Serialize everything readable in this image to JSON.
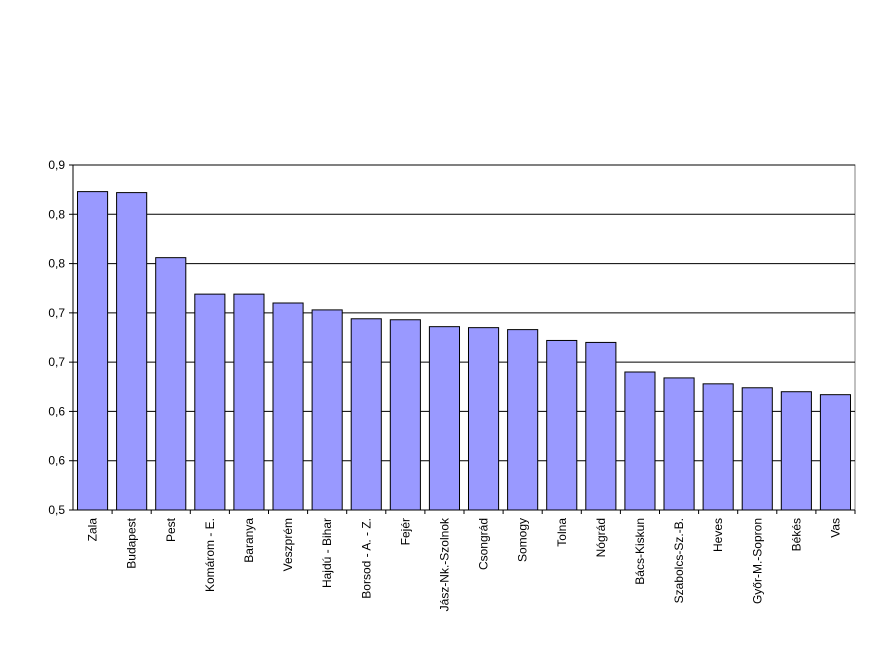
{
  "chart_data": {
    "type": "bar",
    "categories": [
      "Zala",
      "Budapest",
      "Pest",
      "Komárom - E.",
      "Baranya",
      "Veszprém",
      "Hajdú - Bihar",
      "Borsod - A. - Z.",
      "Fejér",
      "Jász-Nk.-Szolnok",
      "Csongrád",
      "Somogy",
      "Tolna",
      "Nógrád",
      "Bács-Kiskun",
      "Szabolcs-Sz.-B.",
      "Heves",
      "Győr-M.-Sopron",
      "Békés",
      "Vas"
    ],
    "values": [
      0.823,
      0.822,
      0.756,
      0.719,
      0.719,
      0.71,
      0.703,
      0.694,
      0.693,
      0.686,
      0.685,
      0.683,
      0.672,
      0.67,
      0.64,
      0.634,
      0.628,
      0.624,
      0.62,
      0.617
    ],
    "color": "#9999ff",
    "ylim": [
      0.5,
      0.85
    ],
    "yticks": [
      {
        "value": 0.5,
        "label": "0,5"
      },
      {
        "value": 0.55,
        "label": "0,6"
      },
      {
        "value": 0.6,
        "label": "0,6"
      },
      {
        "value": 0.65,
        "label": "0,7"
      },
      {
        "value": 0.7,
        "label": "0,7"
      },
      {
        "value": 0.75,
        "label": "0,8"
      },
      {
        "value": 0.8,
        "label": "0,8"
      },
      {
        "value": 0.85,
        "label": "0,9"
      }
    ],
    "grid": true
  }
}
